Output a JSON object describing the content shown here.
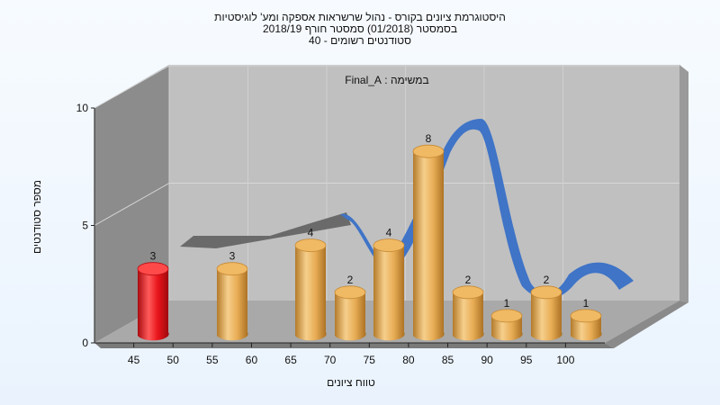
{
  "chart_data": {
    "type": "bar",
    "title_lines": [
      "היסטוגרמת ציונים בקורס - נהול שרשראות אספקה ומע' לוגיסטיות",
      "בסמסטר  (01/2018)  סמסטר חורף 2018/19",
      "סטודנטים רשומים - 40"
    ],
    "annotation": "במשימה : Final_A",
    "xlabel": "טווח ציונים",
    "ylabel": "מספר סטודנטים",
    "ylim": [
      0,
      10
    ],
    "yticks": [
      0,
      5,
      10
    ],
    "xticks": [
      "45",
      "50",
      "55",
      "60",
      "65",
      "70",
      "75",
      "80",
      "85",
      "90",
      "95",
      "100"
    ],
    "categories": [
      "45-50",
      "55-60",
      "65-70",
      "70-75",
      "75-80",
      "80-85",
      "85-90",
      "90-95",
      "95-100",
      "100"
    ],
    "values": [
      3,
      3,
      4,
      2,
      4,
      8,
      2,
      1,
      2,
      1
    ],
    "highlight_index": 0,
    "colors": {
      "highlight": "#e8141a",
      "bar": "#e3a64a",
      "curve": "#3f74c7",
      "curve_shadow": "#6a6a6a",
      "back_wall": "#c0c0c0",
      "side_wall": "#8c8c8c",
      "floor": "#a9a9a9"
    }
  }
}
